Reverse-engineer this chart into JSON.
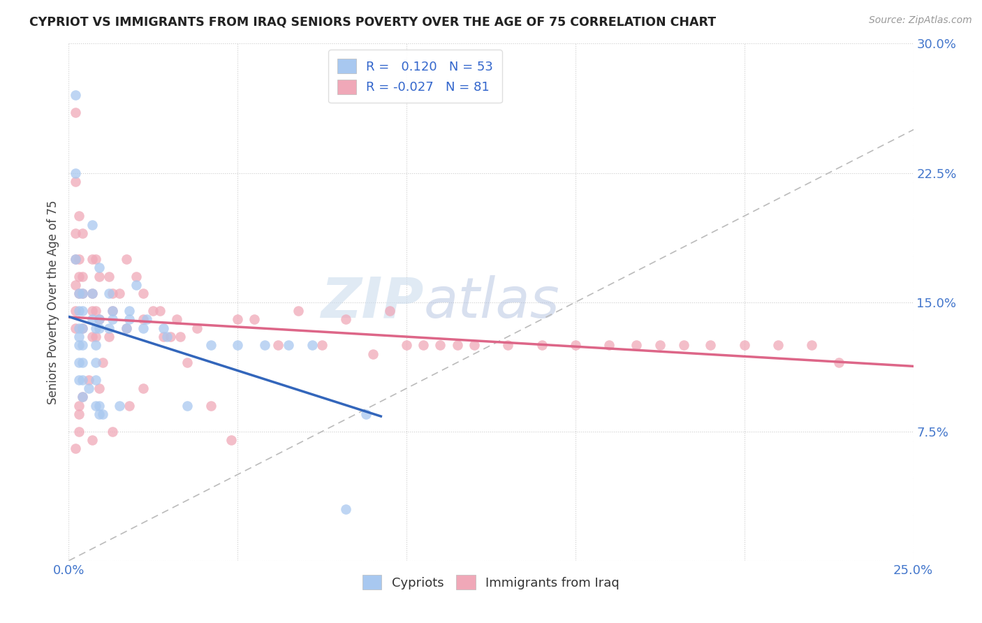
{
  "title": "CYPRIOT VS IMMIGRANTS FROM IRAQ SENIORS POVERTY OVER THE AGE OF 75 CORRELATION CHART",
  "source": "Source: ZipAtlas.com",
  "ylabel": "Seniors Poverty Over the Age of 75",
  "xlim": [
    0.0,
    0.25
  ],
  "ylim": [
    0.0,
    0.3
  ],
  "xticks": [
    0.0,
    0.05,
    0.1,
    0.15,
    0.2,
    0.25
  ],
  "yticks": [
    0.0,
    0.075,
    0.15,
    0.225,
    0.3
  ],
  "xticklabels": [
    "0.0%",
    "",
    "",
    "",
    "",
    "25.0%"
  ],
  "yticklabels": [
    "",
    "7.5%",
    "15.0%",
    "22.5%",
    "30.0%"
  ],
  "legend_R_cypriot": " 0.120",
  "legend_N_cypriot": "53",
  "legend_R_iraq": "-0.027",
  "legend_N_iraq": "81",
  "cypriot_color": "#a8c8f0",
  "iraq_color": "#f0a8b8",
  "cypriot_line_color": "#3366bb",
  "iraq_line_color": "#dd6688",
  "diagonal_color": "#bbbbbb",
  "watermark_zip": "ZIP",
  "watermark_atlas": "atlas",
  "cypriot_x": [
    0.002,
    0.002,
    0.002,
    0.003,
    0.003,
    0.003,
    0.003,
    0.003,
    0.003,
    0.004,
    0.004,
    0.004,
    0.004,
    0.004,
    0.004,
    0.004,
    0.007,
    0.007,
    0.007,
    0.008,
    0.008,
    0.008,
    0.008,
    0.008,
    0.009,
    0.009,
    0.009,
    0.009,
    0.009,
    0.012,
    0.012,
    0.013,
    0.013,
    0.017,
    0.018,
    0.018,
    0.022,
    0.023,
    0.028,
    0.029,
    0.035,
    0.042,
    0.05,
    0.058,
    0.065,
    0.072,
    0.082,
    0.088,
    0.003,
    0.006,
    0.01,
    0.015,
    0.02
  ],
  "cypriot_y": [
    0.27,
    0.225,
    0.175,
    0.155,
    0.145,
    0.135,
    0.125,
    0.115,
    0.105,
    0.155,
    0.145,
    0.135,
    0.125,
    0.115,
    0.105,
    0.095,
    0.195,
    0.155,
    0.14,
    0.135,
    0.125,
    0.115,
    0.105,
    0.09,
    0.17,
    0.14,
    0.135,
    0.09,
    0.085,
    0.155,
    0.135,
    0.145,
    0.14,
    0.135,
    0.145,
    0.14,
    0.135,
    0.14,
    0.135,
    0.13,
    0.09,
    0.125,
    0.125,
    0.125,
    0.125,
    0.125,
    0.03,
    0.085,
    0.13,
    0.1,
    0.085,
    0.09,
    0.16
  ],
  "iraq_x": [
    0.002,
    0.002,
    0.002,
    0.002,
    0.002,
    0.002,
    0.002,
    0.002,
    0.003,
    0.003,
    0.003,
    0.003,
    0.003,
    0.003,
    0.004,
    0.004,
    0.004,
    0.004,
    0.004,
    0.007,
    0.007,
    0.007,
    0.007,
    0.007,
    0.008,
    0.008,
    0.008,
    0.009,
    0.009,
    0.009,
    0.012,
    0.012,
    0.013,
    0.013,
    0.013,
    0.017,
    0.017,
    0.018,
    0.022,
    0.022,
    0.022,
    0.027,
    0.028,
    0.032,
    0.033,
    0.038,
    0.042,
    0.048,
    0.05,
    0.055,
    0.062,
    0.068,
    0.075,
    0.082,
    0.09,
    0.095,
    0.1,
    0.105,
    0.11,
    0.115,
    0.12,
    0.13,
    0.14,
    0.15,
    0.16,
    0.168,
    0.175,
    0.182,
    0.19,
    0.2,
    0.21,
    0.22,
    0.228,
    0.003,
    0.006,
    0.01,
    0.015,
    0.02,
    0.025,
    0.03,
    0.035
  ],
  "iraq_y": [
    0.26,
    0.22,
    0.19,
    0.175,
    0.16,
    0.145,
    0.135,
    0.065,
    0.2,
    0.175,
    0.165,
    0.155,
    0.09,
    0.075,
    0.19,
    0.165,
    0.155,
    0.135,
    0.095,
    0.175,
    0.155,
    0.145,
    0.13,
    0.07,
    0.175,
    0.145,
    0.13,
    0.165,
    0.14,
    0.1,
    0.165,
    0.13,
    0.155,
    0.145,
    0.075,
    0.175,
    0.135,
    0.09,
    0.155,
    0.14,
    0.1,
    0.145,
    0.13,
    0.14,
    0.13,
    0.135,
    0.09,
    0.07,
    0.14,
    0.14,
    0.125,
    0.145,
    0.125,
    0.14,
    0.12,
    0.145,
    0.125,
    0.125,
    0.125,
    0.125,
    0.125,
    0.125,
    0.125,
    0.125,
    0.125,
    0.125,
    0.125,
    0.125,
    0.125,
    0.125,
    0.125,
    0.125,
    0.115,
    0.085,
    0.105,
    0.115,
    0.155,
    0.165,
    0.145,
    0.13,
    0.115
  ]
}
